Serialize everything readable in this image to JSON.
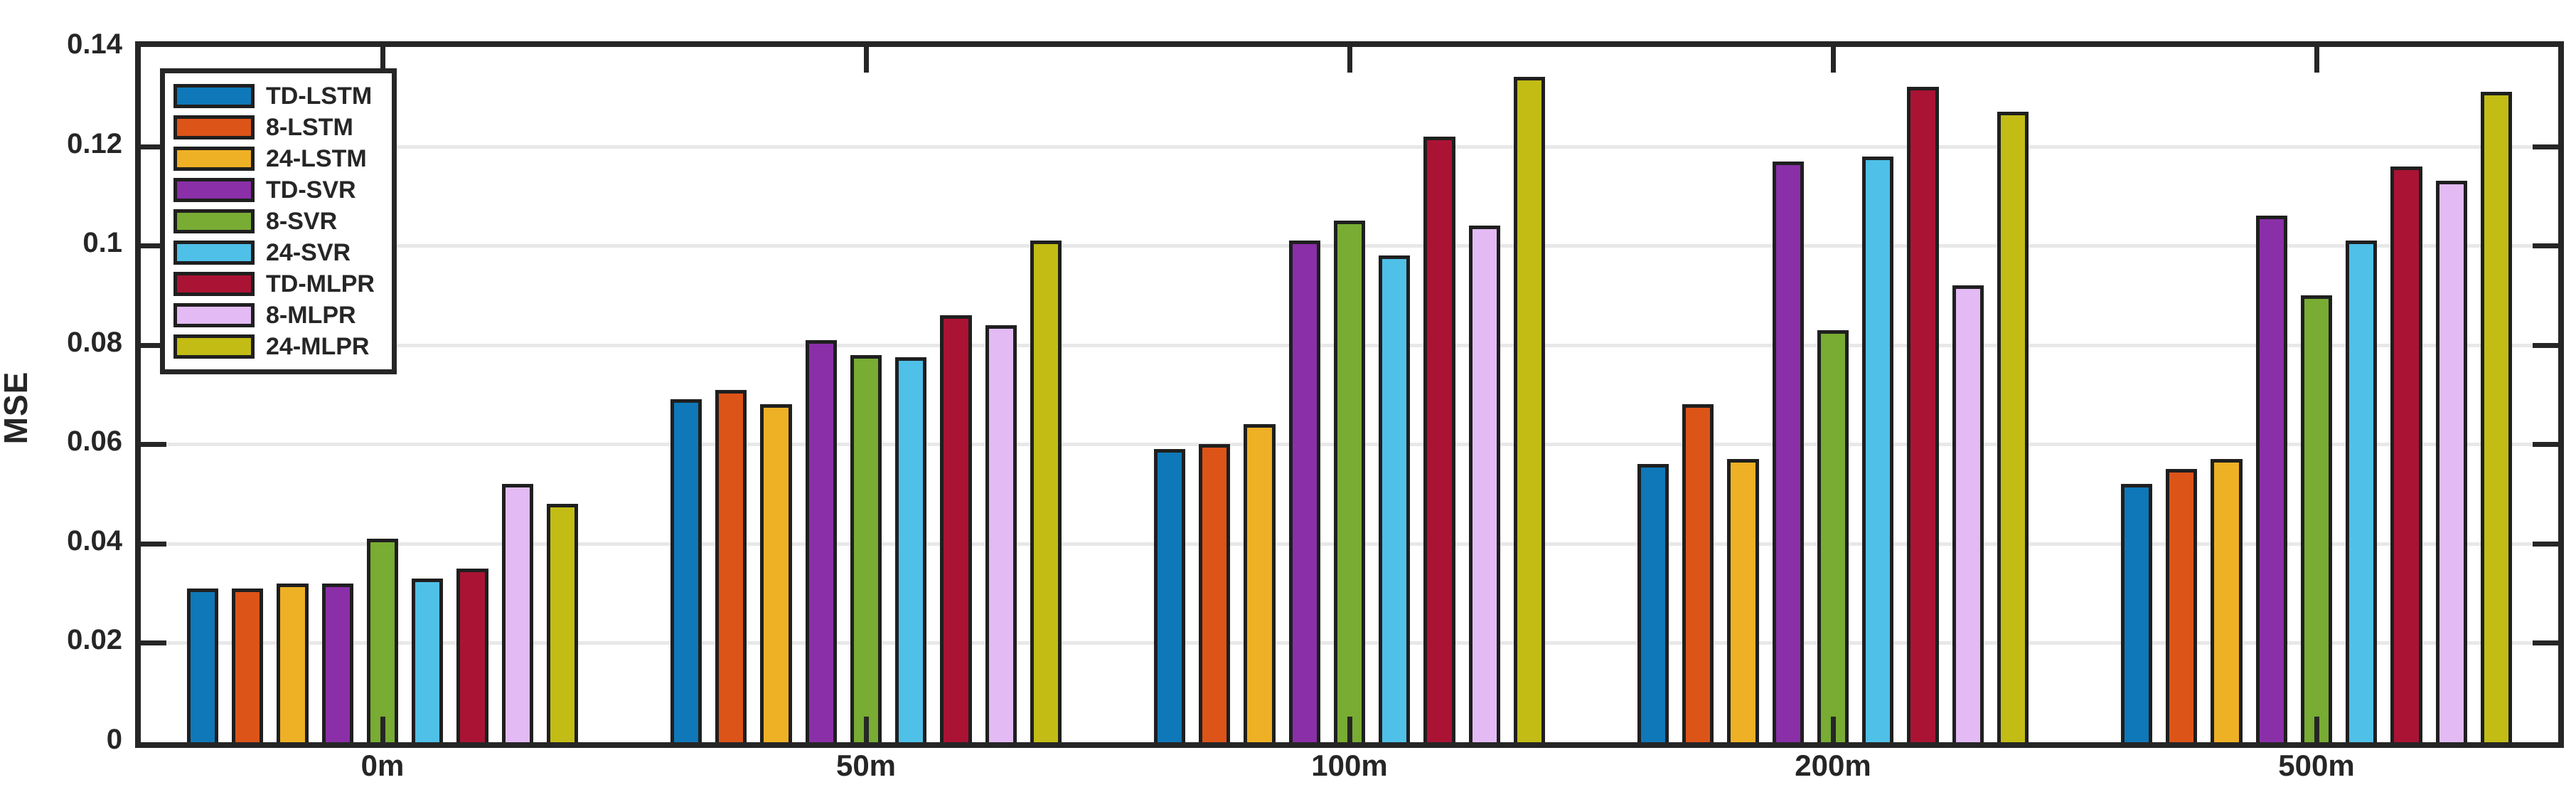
{
  "chart_data": {
    "type": "bar",
    "title": "",
    "xlabel": "",
    "ylabel": "MSE",
    "categories": [
      "0m",
      "50m",
      "100m",
      "200m",
      "500m"
    ],
    "series": [
      {
        "name": "TD-LSTM",
        "color": "#0f78b8",
        "values": [
          0.031,
          0.069,
          0.059,
          0.056,
          0.052
        ]
      },
      {
        "name": "8-LSTM",
        "color": "#dd5418",
        "values": [
          0.031,
          0.071,
          0.06,
          0.068,
          0.055
        ]
      },
      {
        "name": "24-LSTM",
        "color": "#eeb025",
        "values": [
          0.032,
          0.068,
          0.064,
          0.057,
          0.057
        ]
      },
      {
        "name": "TD-SVR",
        "color": "#8a2fa8",
        "values": [
          0.032,
          0.081,
          0.101,
          0.117,
          0.106
        ]
      },
      {
        "name": "8-SVR",
        "color": "#78ac33",
        "values": [
          0.041,
          0.078,
          0.105,
          0.083,
          0.09
        ]
      },
      {
        "name": "24-SVR",
        "color": "#4fc0e8",
        "values": [
          0.033,
          0.0775,
          0.098,
          0.118,
          0.101
        ]
      },
      {
        "name": "TD-MLPR",
        "color": "#ab1334",
        "values": [
          0.035,
          0.086,
          0.122,
          0.132,
          0.116
        ]
      },
      {
        "name": "8-MLPR",
        "color": "#e3baf4",
        "values": [
          0.052,
          0.084,
          0.104,
          0.092,
          0.113
        ]
      },
      {
        "name": "24-MLPR",
        "color": "#c2bc15",
        "values": [
          0.048,
          0.101,
          0.134,
          0.127,
          0.131
        ]
      }
    ],
    "ylim": [
      0,
      0.14
    ],
    "yticks": [
      0,
      0.02,
      0.04,
      0.06,
      0.08,
      0.1,
      0.12,
      0.14
    ],
    "ytick_labels": [
      "0",
      "0.02",
      "0.04",
      "0.06",
      "0.08",
      "0.1",
      "0.12",
      "0.14"
    ],
    "grid": "horizontal",
    "gridline_values": [
      0.02,
      0.04,
      0.06,
      0.08,
      0.1,
      0.12
    ],
    "legend_position": "top-left",
    "colors": {
      "axis": "#262626",
      "bar_edge": "#1f1f1f",
      "gridline": "#e8e8e8",
      "background": "#ffffff"
    }
  }
}
